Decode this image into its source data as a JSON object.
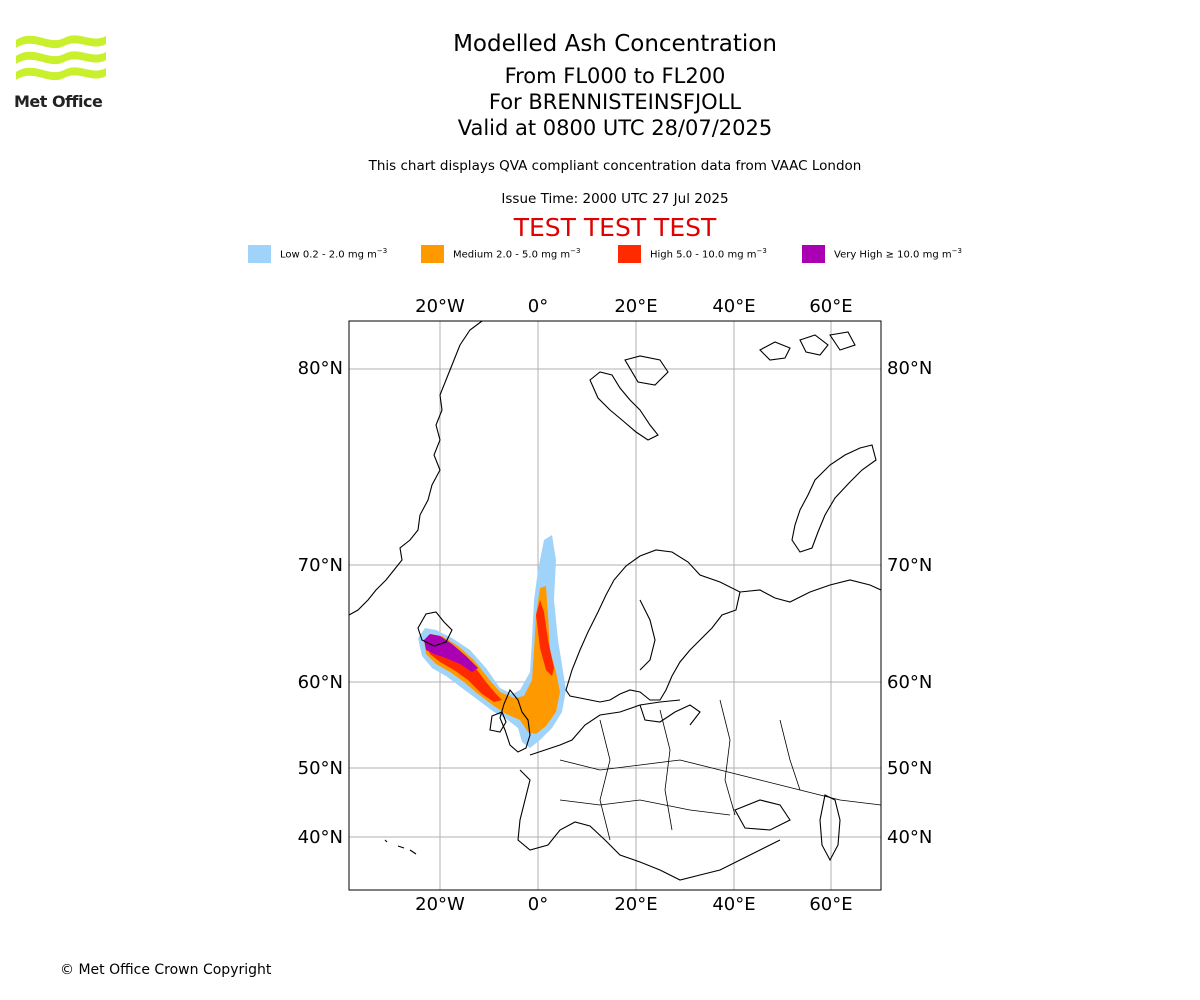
{
  "logo": {
    "text": "Met Office",
    "color": "#c8f02c"
  },
  "title": {
    "line1": "Modelled Ash Concentration",
    "line2": "From FL000 to FL200",
    "line3": "For BRENNISTEINSFJOLL",
    "line4": "Valid at 0800 UTC 28/07/2025"
  },
  "subtitle": "This chart displays QVA compliant concentration data from VAAC London",
  "issue_time": "Issue Time: 2000 UTC 27 Jul 2025",
  "test_banner": "TEST TEST TEST",
  "legend": [
    {
      "label": "Low 0.2 - 2.0 mg m",
      "unit_exp": "−3",
      "color": "#a0d3fa"
    },
    {
      "label": "Medium 2.0 - 5.0 mg m",
      "unit_exp": "−3",
      "color": "#ff9900"
    },
    {
      "label": "High 5.0 - 10.0 mg m",
      "unit_exp": "−3",
      "color": "#ff2a00"
    },
    {
      "label": "Very High  ≥  10.0 mg m",
      "unit_exp": "−3",
      "color": "#aa00b4"
    }
  ],
  "map": {
    "lon_labels": [
      "20°W",
      "0°",
      "20°E",
      "40°E",
      "60°E"
    ],
    "lat_labels": [
      "80°N",
      "70°N",
      "60°N",
      "50°N",
      "40°N"
    ],
    "lon_values": [
      -20,
      0,
      20,
      40,
      60
    ],
    "lat_values": [
      80,
      70,
      60,
      50,
      40
    ]
  },
  "copyright": "© Met Office Crown Copyright"
}
